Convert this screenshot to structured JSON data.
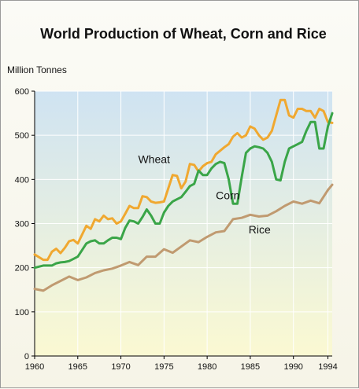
{
  "chart_data": {
    "type": "line",
    "title": "World Production of Wheat, Corn and Rice",
    "ylabel": "Million Tonnes",
    "xlabel": "",
    "xlim": [
      1960,
      1994.5
    ],
    "ylim": [
      0,
      600
    ],
    "x_ticks": [
      1960,
      1965,
      1970,
      1975,
      1980,
      1985,
      1990,
      1994
    ],
    "y_ticks": [
      0,
      100,
      200,
      300,
      400,
      500,
      600
    ],
    "grid": true,
    "legend": "labels-on-lines",
    "series": [
      {
        "name": "Wheat",
        "color": "#f0a830",
        "x": [
          1960,
          1961,
          1961.5,
          1962,
          1962.5,
          1963,
          1963.5,
          1964,
          1964.5,
          1965,
          1965.5,
          1966,
          1966.5,
          1967,
          1967.5,
          1968,
          1968.5,
          1969,
          1969.5,
          1970,
          1970.5,
          1971,
          1971.5,
          1972,
          1972.5,
          1973,
          1973.5,
          1974,
          1974.5,
          1975,
          1975.5,
          1976,
          1976.5,
          1977,
          1977.5,
          1978,
          1978.5,
          1979,
          1979.5,
          1980,
          1980.5,
          1981,
          1981.5,
          1982,
          1982.5,
          1983,
          1983.5,
          1984,
          1984.5,
          1985,
          1985.5,
          1986,
          1986.5,
          1987,
          1987.5,
          1988,
          1988.5,
          1989,
          1989.5,
          1990,
          1990.5,
          1991,
          1991.5,
          1992,
          1992.5,
          1993,
          1993.5,
          1994,
          1994.5
        ],
        "values": [
          230,
          218,
          218,
          236,
          243,
          233,
          245,
          260,
          263,
          255,
          275,
          295,
          288,
          310,
          305,
          318,
          310,
          312,
          300,
          305,
          322,
          340,
          335,
          335,
          362,
          360,
          350,
          347,
          348,
          350,
          380,
          410,
          408,
          380,
          395,
          435,
          433,
          418,
          430,
          437,
          440,
          457,
          465,
          473,
          480,
          497,
          505,
          495,
          500,
          520,
          515,
          500,
          490,
          495,
          510,
          545,
          580,
          580,
          545,
          540,
          560,
          560,
          555,
          555,
          540,
          560,
          555,
          530,
          528
        ]
      },
      {
        "name": "Corn",
        "color": "#3aa548",
        "x": [
          1960,
          1961,
          1962,
          1962.5,
          1963,
          1963.5,
          1964,
          1964.5,
          1965,
          1965.5,
          1966,
          1966.5,
          1967,
          1967.5,
          1968,
          1968.5,
          1969,
          1969.5,
          1970,
          1970.5,
          1971,
          1971.5,
          1972,
          1972.5,
          1973,
          1973.5,
          1974,
          1974.5,
          1975,
          1975.5,
          1976,
          1976.5,
          1977,
          1977.5,
          1978,
          1978.5,
          1979,
          1979.5,
          1980,
          1980.5,
          1981,
          1981.5,
          1982,
          1982.5,
          1983,
          1983.5,
          1984,
          1984.5,
          1985,
          1985.5,
          1986,
          1986.5,
          1987,
          1987.5,
          1988,
          1988.5,
          1989,
          1989.5,
          1990,
          1990.5,
          1991,
          1991.5,
          1992,
          1992.5,
          1993,
          1993.5,
          1994,
          1994.5
        ],
        "values": [
          200,
          205,
          205,
          210,
          212,
          213,
          215,
          220,
          225,
          240,
          255,
          260,
          262,
          255,
          255,
          262,
          268,
          268,
          265,
          290,
          307,
          305,
          300,
          315,
          332,
          318,
          300,
          300,
          325,
          340,
          350,
          355,
          360,
          372,
          385,
          390,
          420,
          410,
          410,
          425,
          435,
          440,
          437,
          400,
          345,
          345,
          405,
          460,
          470,
          475,
          473,
          470,
          460,
          440,
          400,
          398,
          440,
          470,
          475,
          480,
          485,
          510,
          530,
          530,
          470,
          470,
          520,
          550
        ]
      },
      {
        "name": "Rice",
        "color": "#c09a70",
        "x": [
          1960,
          1961,
          1962,
          1963,
          1964,
          1965,
          1966,
          1967,
          1968,
          1969,
          1970,
          1971,
          1972,
          1973,
          1974,
          1975,
          1976,
          1977,
          1978,
          1979,
          1980,
          1981,
          1982,
          1983,
          1984,
          1985,
          1986,
          1987,
          1988,
          1989,
          1990,
          1991,
          1992,
          1993,
          1994,
          1994.5
        ],
        "values": [
          152,
          148,
          160,
          170,
          180,
          172,
          178,
          188,
          194,
          198,
          205,
          213,
          206,
          225,
          225,
          242,
          234,
          248,
          262,
          258,
          270,
          280,
          283,
          310,
          313,
          320,
          316,
          318,
          328,
          340,
          350,
          345,
          352,
          346,
          376,
          388
        ]
      }
    ]
  }
}
